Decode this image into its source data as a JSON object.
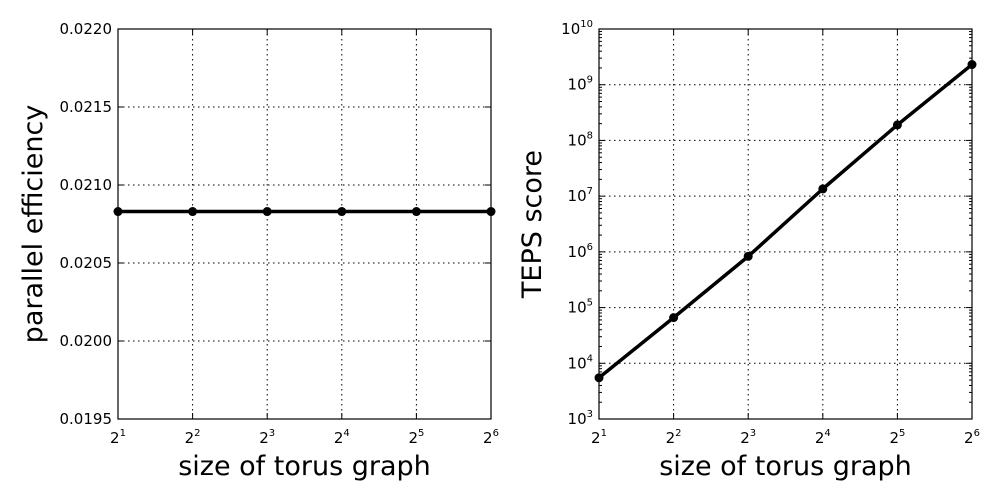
{
  "chart_data": [
    {
      "type": "line",
      "xlabel": "size of torus graph",
      "ylabel": "parallel efficiency",
      "x_scale": "log2",
      "y_scale": "linear",
      "x": [
        2,
        4,
        8,
        16,
        32,
        64
      ],
      "xlim": [
        2,
        64
      ],
      "ylim": [
        0.0195,
        0.022
      ],
      "x_ticks": [
        {
          "value": 2,
          "base": "2",
          "exp": "1"
        },
        {
          "value": 4,
          "base": "2",
          "exp": "2"
        },
        {
          "value": 8,
          "base": "2",
          "exp": "3"
        },
        {
          "value": 16,
          "base": "2",
          "exp": "4"
        },
        {
          "value": 32,
          "base": "2",
          "exp": "5"
        },
        {
          "value": 64,
          "base": "2",
          "exp": "6"
        }
      ],
      "y_ticks": [
        {
          "value": 0.0195,
          "label": "0.0195"
        },
        {
          "value": 0.02,
          "label": "0.0200"
        },
        {
          "value": 0.0205,
          "label": "0.0205"
        },
        {
          "value": 0.021,
          "label": "0.0210"
        },
        {
          "value": 0.0215,
          "label": "0.0215"
        },
        {
          "value": 0.022,
          "label": "0.0220"
        }
      ],
      "grid": true,
      "series": [
        {
          "values": [
            0.02083,
            0.02083,
            0.02083,
            0.02083,
            0.02083,
            0.02083
          ],
          "color": "#000000",
          "marker": "circle"
        }
      ]
    },
    {
      "type": "line",
      "xlabel": "size of torus graph",
      "ylabel": "TEPS score",
      "x_scale": "log2",
      "y_scale": "log10",
      "x": [
        2,
        4,
        8,
        16,
        32,
        64
      ],
      "xlim": [
        2,
        64
      ],
      "ylim": [
        1000,
        10000000000
      ],
      "x_ticks": [
        {
          "value": 2,
          "base": "2",
          "exp": "1"
        },
        {
          "value": 4,
          "base": "2",
          "exp": "2"
        },
        {
          "value": 8,
          "base": "2",
          "exp": "3"
        },
        {
          "value": 16,
          "base": "2",
          "exp": "4"
        },
        {
          "value": 32,
          "base": "2",
          "exp": "5"
        },
        {
          "value": 64,
          "base": "2",
          "exp": "6"
        }
      ],
      "y_ticks": [
        {
          "value": 1000,
          "base": "10",
          "exp": "3"
        },
        {
          "value": 10000,
          "base": "10",
          "exp": "4"
        },
        {
          "value": 100000,
          "base": "10",
          "exp": "5"
        },
        {
          "value": 1000000,
          "base": "10",
          "exp": "6"
        },
        {
          "value": 10000000,
          "base": "10",
          "exp": "7"
        },
        {
          "value": 100000000,
          "base": "10",
          "exp": "8"
        },
        {
          "value": 1000000000,
          "base": "10",
          "exp": "9"
        },
        {
          "value": 10000000000,
          "base": "10",
          "exp": "10"
        }
      ],
      "grid": true,
      "series": [
        {
          "values": [
            5500,
            66000,
            830000,
            13500000,
            190000000,
            2300000000
          ],
          "color": "#000000",
          "marker": "circle"
        }
      ]
    }
  ]
}
